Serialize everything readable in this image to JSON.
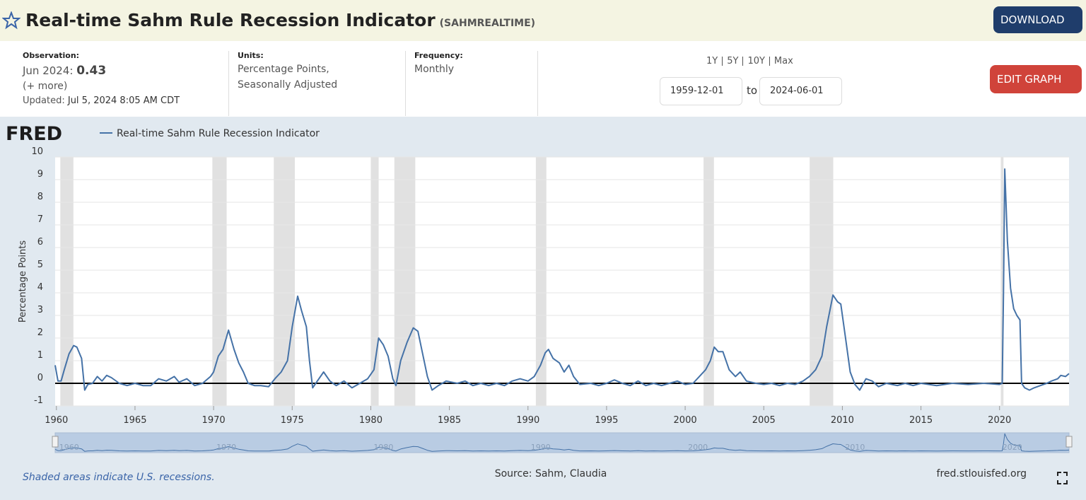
{
  "header": {
    "title": "Real-time Sahm Rule Recession Indicator",
    "series_id": "(SAHMREALTIME)",
    "download": "DOWNLOAD"
  },
  "observation": {
    "label": "Observation:",
    "date": "Jun 2024:",
    "value": "0.43",
    "more": "(+ more)",
    "updated_label": "Updated:",
    "updated": "Jul 5, 2024 8:05 AM CDT"
  },
  "units": {
    "label": "Units:",
    "lines": [
      "Percentage Points,",
      "Seasonally Adjusted"
    ]
  },
  "frequency": {
    "label": "Frequency:",
    "value": "Monthly"
  },
  "range": {
    "buttons": [
      "1Y",
      "5Y",
      "10Y",
      "Max"
    ],
    "start": "1959-12-01",
    "to": "to",
    "end": "2024-06-01"
  },
  "edit": "EDIT GRAPH",
  "chart_data": {
    "type": "line",
    "logo": "FRED",
    "ylabel": "Percentage Points",
    "series": [
      {
        "name": "Real-time Sahm Rule Recession Indicator",
        "color": "#4572a7",
        "x": [
          1959.92,
          1960.1,
          1960.3,
          1960.5,
          1960.8,
          1961.1,
          1961.3,
          1961.6,
          1961.8,
          1962.0,
          1962.3,
          1962.6,
          1962.9,
          1963.2,
          1963.5,
          1964.0,
          1964.5,
          1965.0,
          1965.5,
          1966.0,
          1966.5,
          1967.0,
          1967.5,
          1967.8,
          1968.3,
          1968.8,
          1969.3,
          1969.8,
          1970.0,
          1970.3,
          1970.6,
          1970.95,
          1971.3,
          1971.6,
          1971.9,
          1972.2,
          1972.6,
          1973.0,
          1973.5,
          1973.9,
          1974.3,
          1974.7,
          1975.0,
          1975.35,
          1975.6,
          1975.9,
          1976.1,
          1976.3,
          1976.6,
          1977.0,
          1977.4,
          1977.8,
          1978.3,
          1978.8,
          1979.3,
          1979.8,
          1980.2,
          1980.5,
          1980.8,
          1981.1,
          1981.4,
          1981.6,
          1981.9,
          1982.3,
          1982.7,
          1983.0,
          1983.3,
          1983.6,
          1983.9,
          1984.3,
          1984.8,
          1985.5,
          1986.0,
          1986.5,
          1987.0,
          1987.5,
          1988.0,
          1988.5,
          1989.0,
          1989.5,
          1990.0,
          1990.4,
          1990.8,
          1991.1,
          1991.3,
          1991.6,
          1992.0,
          1992.3,
          1992.6,
          1992.9,
          1993.3,
          1994.0,
          1994.5,
          1995.0,
          1995.5,
          1996.0,
          1996.5,
          1997.0,
          1997.5,
          1998.0,
          1998.5,
          1999.0,
          1999.5,
          2000.0,
          2000.5,
          2000.9,
          2001.3,
          2001.6,
          2001.85,
          2002.1,
          2002.4,
          2002.8,
          2003.2,
          2003.5,
          2003.9,
          2004.5,
          2005.0,
          2005.5,
          2006.0,
          2006.5,
          2007.0,
          2007.5,
          2007.9,
          2008.3,
          2008.7,
          2009.0,
          2009.4,
          2009.7,
          2009.9,
          2010.2,
          2010.5,
          2010.8,
          2011.1,
          2011.5,
          2011.9,
          2012.3,
          2012.8,
          2013.5,
          2014.0,
          2014.5,
          2015.0,
          2016.0,
          2017.0,
          2018.0,
          2019.0,
          2020.0,
          2020.17,
          2020.25,
          2020.33,
          2020.5,
          2020.7,
          2020.9,
          2021.1,
          2021.3,
          2021.4,
          2021.6,
          2021.9,
          2022.2,
          2022.6,
          2023.0,
          2023.3,
          2023.7,
          2023.9,
          2024.2,
          2024.42
        ],
        "values": [
          0.8,
          0.1,
          0.1,
          0.6,
          1.3,
          1.67,
          1.6,
          1.1,
          -0.3,
          -0.05,
          0.0,
          0.3,
          0.1,
          0.35,
          0.25,
          0.0,
          -0.1,
          0.0,
          -0.1,
          -0.1,
          0.2,
          0.1,
          0.3,
          0.05,
          0.2,
          -0.1,
          0.0,
          0.3,
          0.5,
          1.2,
          1.5,
          2.35,
          1.5,
          0.9,
          0.5,
          0.0,
          -0.1,
          -0.1,
          -0.15,
          0.2,
          0.5,
          1.0,
          2.5,
          3.85,
          3.2,
          2.5,
          1.0,
          -0.2,
          0.1,
          0.5,
          0.1,
          -0.1,
          0.1,
          -0.2,
          0.0,
          0.2,
          0.6,
          2.0,
          1.7,
          1.2,
          0.2,
          -0.1,
          1.0,
          1.8,
          2.45,
          2.3,
          1.3,
          0.3,
          -0.3,
          -0.1,
          0.1,
          0.0,
          0.1,
          -0.1,
          0.0,
          -0.1,
          0.0,
          -0.1,
          0.1,
          0.2,
          0.1,
          0.3,
          0.8,
          1.35,
          1.5,
          1.1,
          0.9,
          0.5,
          0.8,
          0.3,
          -0.05,
          0.0,
          -0.1,
          0.0,
          0.15,
          0.0,
          -0.1,
          0.1,
          -0.1,
          0.0,
          -0.1,
          0.0,
          0.1,
          -0.05,
          0.0,
          0.3,
          0.6,
          1.0,
          1.6,
          1.4,
          1.4,
          0.6,
          0.3,
          0.5,
          0.1,
          0.0,
          -0.05,
          0.0,
          -0.1,
          0.0,
          -0.05,
          0.1,
          0.3,
          0.6,
          1.2,
          2.5,
          3.9,
          3.6,
          3.5,
          2.0,
          0.5,
          -0.05,
          -0.3,
          0.2,
          0.1,
          -0.15,
          0.0,
          -0.1,
          0.0,
          -0.1,
          0.0,
          -0.1,
          0.0,
          -0.05,
          0.0,
          -0.05,
          0.0,
          4.0,
          9.47,
          6.3,
          4.2,
          3.3,
          3.0,
          2.8,
          0.0,
          -0.2,
          -0.3,
          -0.2,
          -0.1,
          0.0,
          0.1,
          0.2,
          0.35,
          0.3,
          0.43
        ]
      }
    ],
    "xlim": [
      1959.92,
      2024.42
    ],
    "ylim": [
      -1,
      10
    ],
    "xticks": [
      1960,
      1965,
      1970,
      1975,
      1980,
      1985,
      1990,
      1995,
      2000,
      2005,
      2010,
      2015,
      2020
    ],
    "yticks": [
      -1,
      0,
      1,
      2,
      3,
      4,
      5,
      6,
      7,
      8,
      9,
      10
    ],
    "navigator_labels": [
      1960,
      1970,
      1980,
      1990,
      2000,
      2010,
      2020
    ],
    "recessions": [
      [
        1960.25,
        1961.08
      ],
      [
        1969.92,
        1970.83
      ],
      [
        1973.83,
        1975.17
      ],
      [
        1980.0,
        1980.5
      ],
      [
        1981.5,
        1982.83
      ],
      [
        1990.5,
        1991.17
      ],
      [
        2001.17,
        2001.83
      ],
      [
        2007.92,
        2009.42
      ],
      [
        2020.08,
        2020.25
      ]
    ],
    "recession_color": "#e1e1e1",
    "grid": true
  },
  "footer": {
    "note": "Shaded areas indicate U.S. recessions.",
    "source": "Source: Sahm, Claudia",
    "site": "fred.stlouisfed.org"
  }
}
